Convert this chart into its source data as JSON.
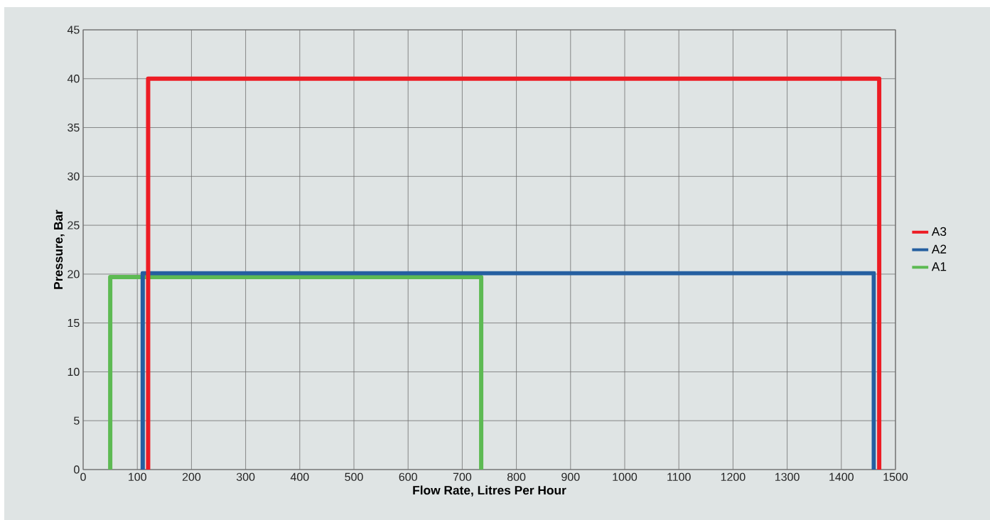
{
  "chart_data": {
    "type": "line",
    "xlabel": "Flow Rate, Litres Per Hour",
    "ylabel": "Pressure, Bar",
    "xlim": [
      0,
      1500
    ],
    "ylim": [
      0,
      45
    ],
    "xticks": [
      0,
      100,
      200,
      300,
      400,
      500,
      600,
      700,
      800,
      900,
      1000,
      1100,
      1200,
      1300,
      1400,
      1500
    ],
    "yticks": [
      0,
      5,
      10,
      15,
      20,
      25,
      30,
      35,
      40,
      45
    ],
    "grid": true,
    "legend": "right",
    "marker": "none",
    "line_style": "solid",
    "series": [
      {
        "name": "A3",
        "color": "#ed1c24",
        "x": [
          120,
          120,
          1470,
          1470
        ],
        "values": [
          0,
          40,
          40,
          0
        ]
      },
      {
        "name": "A2",
        "color": "#255fa0",
        "x": [
          110,
          110,
          1460,
          1460
        ],
        "values": [
          0,
          20.1,
          20.1,
          0
        ]
      },
      {
        "name": "A1",
        "color": "#5dba53",
        "x": [
          50,
          50,
          735,
          735
        ],
        "values": [
          0,
          19.7,
          19.7,
          0
        ]
      }
    ]
  }
}
